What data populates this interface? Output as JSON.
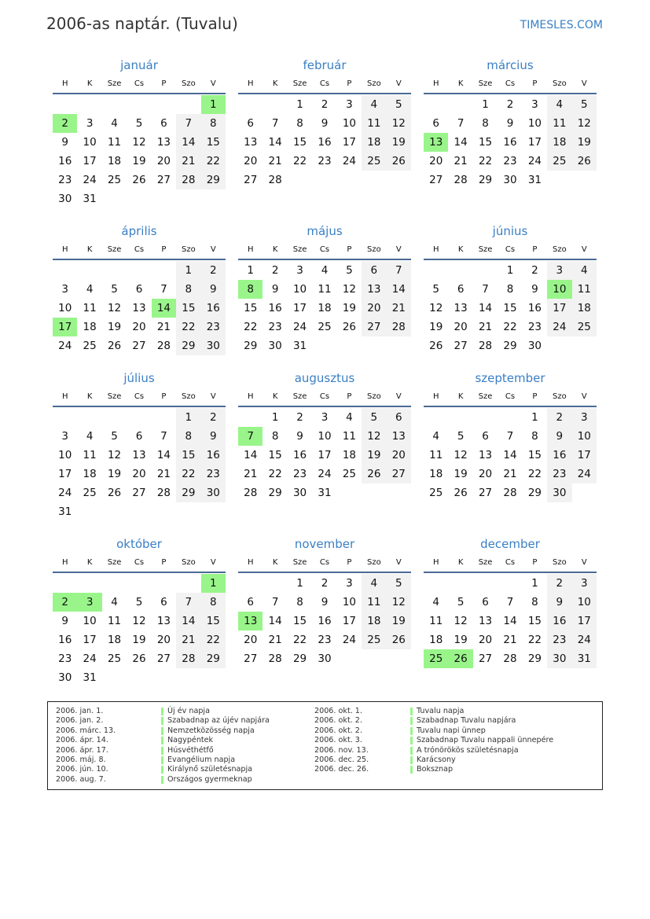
{
  "header": {
    "title": "2006-as naptár. (Tuvalu)",
    "brand": "TIMESLES.COM"
  },
  "year": 2006,
  "weekdays": [
    "H",
    "K",
    "Sze",
    "Cs",
    "P",
    "Szo",
    "V"
  ],
  "colors": {
    "accent": "#3a7fc4",
    "holiday": "#99f58a",
    "weekend": "#f2f2f2",
    "rule": "#4a6a95"
  },
  "months": [
    {
      "name": "január",
      "offset": 6,
      "days": 31,
      "holidays": [
        1,
        2
      ]
    },
    {
      "name": "február",
      "offset": 2,
      "days": 28,
      "holidays": []
    },
    {
      "name": "március",
      "offset": 2,
      "days": 31,
      "holidays": [
        13
      ]
    },
    {
      "name": "április",
      "offset": 5,
      "days": 30,
      "holidays": [
        14,
        17
      ]
    },
    {
      "name": "május",
      "offset": 0,
      "days": 31,
      "holidays": [
        8
      ]
    },
    {
      "name": "június",
      "offset": 3,
      "days": 30,
      "holidays": [
        10
      ]
    },
    {
      "name": "július",
      "offset": 5,
      "days": 31,
      "holidays": []
    },
    {
      "name": "augusztus",
      "offset": 1,
      "days": 31,
      "holidays": [
        7
      ]
    },
    {
      "name": "szeptember",
      "offset": 4,
      "days": 30,
      "holidays": []
    },
    {
      "name": "október",
      "offset": 6,
      "days": 31,
      "holidays": [
        1,
        2,
        3
      ]
    },
    {
      "name": "november",
      "offset": 2,
      "days": 30,
      "holidays": [
        13
      ]
    },
    {
      "name": "december",
      "offset": 4,
      "days": 31,
      "holidays": [
        25,
        26
      ]
    }
  ],
  "legend": [
    {
      "date": "2006. jan. 1.",
      "name": "Új év napja"
    },
    {
      "date": "2006. jan. 2.",
      "name": "Szabadnap az újév napjára"
    },
    {
      "date": "2006. márc. 13.",
      "name": "Nemzetközösség napja"
    },
    {
      "date": "2006. ápr. 14.",
      "name": "Nagypéntek"
    },
    {
      "date": "2006. ápr. 17.",
      "name": "Húsvéthétfő"
    },
    {
      "date": "2006. máj. 8.",
      "name": "Evangélium napja"
    },
    {
      "date": "2006. jún. 10.",
      "name": "Királynő születésnapja"
    },
    {
      "date": "2006. aug. 7.",
      "name": "Országos gyermeknap"
    },
    {
      "date": "2006. okt. 1.",
      "name": "Tuvalu napja"
    },
    {
      "date": "2006. okt. 2.",
      "name": "Szabadnap Tuvalu napjára"
    },
    {
      "date": "2006. okt. 2.",
      "name": "Tuvalu napi ünnep"
    },
    {
      "date": "2006. okt. 3.",
      "name": "Szabadnap Tuvalu nappali ünnepére"
    },
    {
      "date": "2006. nov. 13.",
      "name": "A trónörökös születésnapja"
    },
    {
      "date": "2006. dec. 25.",
      "name": "Karácsony"
    },
    {
      "date": "2006. dec. 26.",
      "name": "Boksznap"
    }
  ]
}
